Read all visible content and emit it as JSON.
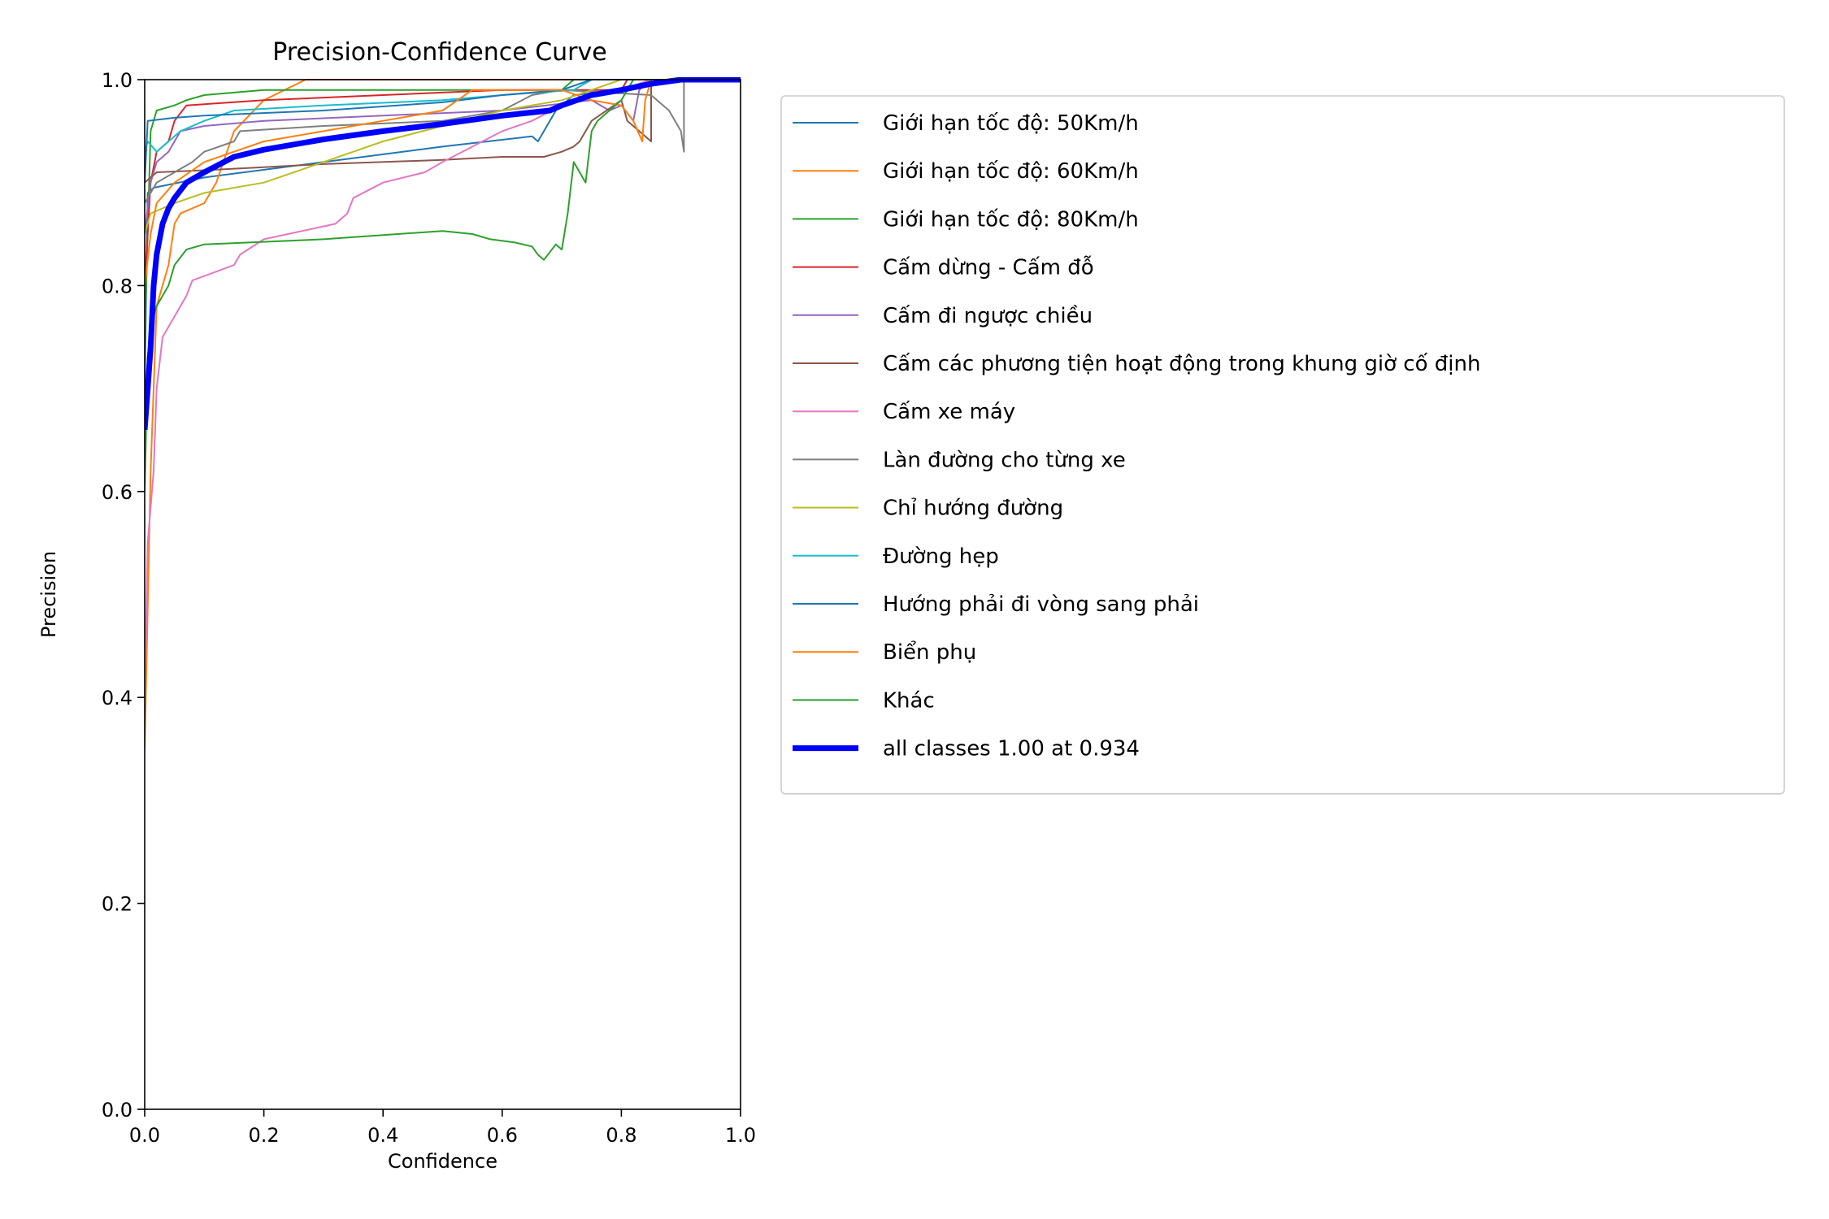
{
  "chart_data": {
    "type": "line",
    "title": "Precision-Confidence Curve",
    "xlabel": "Confidence",
    "ylabel": "Precision",
    "xlim": [
      0.0,
      1.0
    ],
    "ylim": [
      0.0,
      1.0
    ],
    "xticks": [
      "0.0",
      "0.2",
      "0.4",
      "0.6",
      "0.8",
      "1.0"
    ],
    "yticks": [
      "0.0",
      "0.2",
      "0.4",
      "0.6",
      "0.8",
      "1.0"
    ],
    "grid": false,
    "legend_position": "outside-right",
    "series": [
      {
        "name": "Giới hạn tốc độ: 50Km/h",
        "color": "#1f77b4",
        "width": 1,
        "points": [
          [
            0.0,
            0.7
          ],
          [
            0.005,
            0.89
          ],
          [
            0.015,
            0.895
          ],
          [
            0.1,
            0.905
          ],
          [
            0.3,
            0.92
          ],
          [
            0.5,
            0.935
          ],
          [
            0.65,
            0.945
          ],
          [
            0.66,
            0.94
          ],
          [
            0.69,
            0.97
          ],
          [
            0.72,
            0.985
          ],
          [
            0.8,
            0.99
          ],
          [
            0.85,
            1.0
          ],
          [
            1.0,
            1.0
          ]
        ]
      },
      {
        "name": "Giới hạn tốc độ: 60Km/h",
        "color": "#ff7f0e",
        "width": 1,
        "points": [
          [
            0.0,
            0.35
          ],
          [
            0.01,
            0.62
          ],
          [
            0.02,
            0.78
          ],
          [
            0.04,
            0.82
          ],
          [
            0.05,
            0.86
          ],
          [
            0.06,
            0.87
          ],
          [
            0.1,
            0.88
          ],
          [
            0.12,
            0.9
          ],
          [
            0.15,
            0.95
          ],
          [
            0.2,
            0.98
          ],
          [
            0.27,
            1.0
          ],
          [
            1.0,
            1.0
          ]
        ]
      },
      {
        "name": "Giới hạn tốc độ: 80Km/h",
        "color": "#2ca02c",
        "width": 1,
        "points": [
          [
            0.0,
            0.75
          ],
          [
            0.01,
            0.95
          ],
          [
            0.02,
            0.97
          ],
          [
            0.05,
            0.975
          ],
          [
            0.07,
            0.98
          ],
          [
            0.1,
            0.985
          ],
          [
            0.2,
            0.99
          ],
          [
            0.55,
            0.99
          ],
          [
            0.6,
            0.99
          ],
          [
            0.7,
            0.99
          ],
          [
            0.72,
            1.0
          ],
          [
            1.0,
            1.0
          ]
        ]
      },
      {
        "name": "Cấm dừng - Cấm đỗ",
        "color": "#d62728",
        "width": 1,
        "points": [
          [
            0.0,
            0.8
          ],
          [
            0.01,
            0.9
          ],
          [
            0.02,
            0.93
          ],
          [
            0.04,
            0.94
          ],
          [
            0.05,
            0.96
          ],
          [
            0.07,
            0.975
          ],
          [
            0.2,
            0.98
          ],
          [
            0.4,
            0.985
          ],
          [
            0.6,
            0.99
          ],
          [
            0.8,
            0.99
          ],
          [
            0.81,
            1.0
          ],
          [
            1.0,
            1.0
          ]
        ]
      },
      {
        "name": "Cấm đi ngược chiều",
        "color": "#9467bd",
        "width": 1,
        "points": [
          [
            0.0,
            0.85
          ],
          [
            0.01,
            0.9
          ],
          [
            0.02,
            0.92
          ],
          [
            0.04,
            0.93
          ],
          [
            0.06,
            0.95
          ],
          [
            0.1,
            0.955
          ],
          [
            0.2,
            0.96
          ],
          [
            0.4,
            0.965
          ],
          [
            0.6,
            0.97
          ],
          [
            0.75,
            0.98
          ],
          [
            0.78,
            0.97
          ],
          [
            0.8,
            0.975
          ],
          [
            0.82,
            0.96
          ],
          [
            0.83,
            0.99
          ],
          [
            0.85,
            1.0
          ],
          [
            1.0,
            1.0
          ]
        ]
      },
      {
        "name": "Cấm các phương tiện hoạt động trong khung giờ cố định",
        "color": "#8c564b",
        "width": 1,
        "points": [
          [
            0.0,
            0.9
          ],
          [
            0.01,
            0.905
          ],
          [
            0.02,
            0.91
          ],
          [
            0.1,
            0.912
          ],
          [
            0.3,
            0.918
          ],
          [
            0.5,
            0.922
          ],
          [
            0.6,
            0.925
          ],
          [
            0.67,
            0.925
          ],
          [
            0.7,
            0.93
          ],
          [
            0.72,
            0.935
          ],
          [
            0.73,
            0.94
          ],
          [
            0.74,
            0.95
          ],
          [
            0.75,
            0.96
          ],
          [
            0.8,
            0.98
          ],
          [
            0.81,
            0.96
          ],
          [
            0.83,
            0.95
          ],
          [
            0.85,
            0.94
          ],
          [
            0.85,
            1.0
          ],
          [
            1.0,
            1.0
          ]
        ]
      },
      {
        "name": "Cấm xe máy",
        "color": "#e377c2",
        "width": 1,
        "points": [
          [
            0.0,
            0.4
          ],
          [
            0.005,
            0.55
          ],
          [
            0.015,
            0.62
          ],
          [
            0.02,
            0.7
          ],
          [
            0.03,
            0.75
          ],
          [
            0.05,
            0.77
          ],
          [
            0.07,
            0.79
          ],
          [
            0.08,
            0.805
          ],
          [
            0.15,
            0.82
          ],
          [
            0.16,
            0.83
          ],
          [
            0.2,
            0.845
          ],
          [
            0.32,
            0.86
          ],
          [
            0.34,
            0.87
          ],
          [
            0.35,
            0.885
          ],
          [
            0.4,
            0.9
          ],
          [
            0.47,
            0.91
          ],
          [
            0.5,
            0.92
          ],
          [
            0.55,
            0.935
          ],
          [
            0.6,
            0.95
          ],
          [
            0.65,
            0.96
          ],
          [
            0.7,
            0.975
          ],
          [
            0.75,
            0.985
          ],
          [
            0.8,
            0.99
          ],
          [
            0.85,
            1.0
          ],
          [
            1.0,
            1.0
          ]
        ]
      },
      {
        "name": "Làn đường cho từng xe",
        "color": "#7f7f7f",
        "width": 1,
        "points": [
          [
            0.0,
            0.88
          ],
          [
            0.01,
            0.89
          ],
          [
            0.02,
            0.9
          ],
          [
            0.05,
            0.91
          ],
          [
            0.08,
            0.92
          ],
          [
            0.1,
            0.93
          ],
          [
            0.15,
            0.94
          ],
          [
            0.16,
            0.95
          ],
          [
            0.3,
            0.955
          ],
          [
            0.5,
            0.96
          ],
          [
            0.6,
            0.97
          ],
          [
            0.65,
            0.985
          ],
          [
            0.7,
            0.99
          ],
          [
            0.85,
            0.985
          ],
          [
            0.88,
            0.97
          ],
          [
            0.9,
            0.95
          ],
          [
            0.905,
            0.93
          ],
          [
            0.905,
            1.0
          ],
          [
            1.0,
            1.0
          ]
        ]
      },
      {
        "name": "Chỉ hướng đường",
        "color": "#bcbd22",
        "width": 1,
        "points": [
          [
            0.0,
            0.85
          ],
          [
            0.01,
            0.87
          ],
          [
            0.05,
            0.88
          ],
          [
            0.1,
            0.89
          ],
          [
            0.2,
            0.9
          ],
          [
            0.3,
            0.92
          ],
          [
            0.4,
            0.94
          ],
          [
            0.5,
            0.955
          ],
          [
            0.6,
            0.97
          ],
          [
            0.7,
            0.98
          ],
          [
            0.75,
            0.99
          ],
          [
            0.8,
            1.0
          ],
          [
            1.0,
            1.0
          ]
        ]
      },
      {
        "name": "Đường hẹp",
        "color": "#17becf",
        "width": 1,
        "points": [
          [
            0.0,
            0.93
          ],
          [
            0.005,
            0.94
          ],
          [
            0.02,
            0.93
          ],
          [
            0.04,
            0.94
          ],
          [
            0.06,
            0.95
          ],
          [
            0.1,
            0.96
          ],
          [
            0.15,
            0.97
          ],
          [
            0.3,
            0.975
          ],
          [
            0.5,
            0.98
          ],
          [
            0.6,
            0.985
          ],
          [
            0.72,
            0.99
          ],
          [
            0.75,
            1.0
          ],
          [
            1.0,
            1.0
          ]
        ]
      },
      {
        "name": "Hướng phải đi vòng sang phải",
        "color": "#1f77b4",
        "width": 1,
        "points": [
          [
            0.0,
            0.9
          ],
          [
            0.005,
            0.96
          ],
          [
            0.05,
            0.963
          ],
          [
            0.1,
            0.965
          ],
          [
            0.3,
            0.97
          ],
          [
            0.5,
            0.978
          ],
          [
            0.6,
            0.985
          ],
          [
            0.7,
            0.99
          ],
          [
            0.75,
            1.0
          ],
          [
            1.0,
            1.0
          ]
        ]
      },
      {
        "name": "Biển phụ",
        "color": "#ff7f0e",
        "width": 1,
        "points": [
          [
            0.0,
            0.8
          ],
          [
            0.01,
            0.85
          ],
          [
            0.02,
            0.88
          ],
          [
            0.05,
            0.9
          ],
          [
            0.1,
            0.92
          ],
          [
            0.15,
            0.93
          ],
          [
            0.2,
            0.94
          ],
          [
            0.3,
            0.95
          ],
          [
            0.4,
            0.96
          ],
          [
            0.5,
            0.97
          ],
          [
            0.55,
            0.99
          ],
          [
            0.7,
            0.99
          ],
          [
            0.75,
            0.98
          ],
          [
            0.8,
            0.975
          ],
          [
            0.82,
            0.96
          ],
          [
            0.835,
            0.94
          ],
          [
            0.84,
            0.98
          ],
          [
            0.85,
            1.0
          ],
          [
            1.0,
            1.0
          ]
        ]
      },
      {
        "name": "Khác",
        "color": "#2ca02c",
        "width": 1,
        "points": [
          [
            0.0,
            0.6
          ],
          [
            0.005,
            0.73
          ],
          [
            0.01,
            0.76
          ],
          [
            0.02,
            0.78
          ],
          [
            0.04,
            0.8
          ],
          [
            0.05,
            0.82
          ],
          [
            0.07,
            0.835
          ],
          [
            0.1,
            0.84
          ],
          [
            0.3,
            0.845
          ],
          [
            0.5,
            0.853
          ],
          [
            0.55,
            0.85
          ],
          [
            0.58,
            0.845
          ],
          [
            0.62,
            0.842
          ],
          [
            0.65,
            0.838
          ],
          [
            0.66,
            0.83
          ],
          [
            0.67,
            0.825
          ],
          [
            0.69,
            0.84
          ],
          [
            0.7,
            0.835
          ],
          [
            0.71,
            0.87
          ],
          [
            0.72,
            0.92
          ],
          [
            0.73,
            0.91
          ],
          [
            0.74,
            0.9
          ],
          [
            0.75,
            0.95
          ],
          [
            0.76,
            0.96
          ],
          [
            0.78,
            0.97
          ],
          [
            0.8,
            0.98
          ],
          [
            0.82,
            1.0
          ],
          [
            1.0,
            1.0
          ]
        ]
      },
      {
        "name": "all classes 1.00 at 0.934",
        "color": "#0000ff",
        "width": 4,
        "points": [
          [
            0.0,
            0.66
          ],
          [
            0.005,
            0.7
          ],
          [
            0.01,
            0.74
          ],
          [
            0.015,
            0.8
          ],
          [
            0.02,
            0.83
          ],
          [
            0.03,
            0.86
          ],
          [
            0.04,
            0.875
          ],
          [
            0.05,
            0.885
          ],
          [
            0.07,
            0.9
          ],
          [
            0.1,
            0.91
          ],
          [
            0.15,
            0.925
          ],
          [
            0.2,
            0.932
          ],
          [
            0.3,
            0.942
          ],
          [
            0.4,
            0.95
          ],
          [
            0.5,
            0.957
          ],
          [
            0.6,
            0.965
          ],
          [
            0.68,
            0.97
          ],
          [
            0.7,
            0.975
          ],
          [
            0.75,
            0.985
          ],
          [
            0.8,
            0.99
          ],
          [
            0.85,
            0.996
          ],
          [
            0.9,
            1.0
          ],
          [
            0.934,
            1.0
          ],
          [
            1.0,
            1.0
          ]
        ]
      }
    ]
  }
}
